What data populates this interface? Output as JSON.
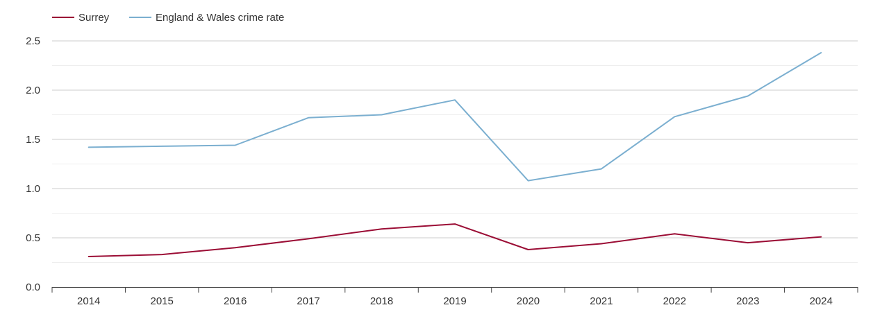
{
  "chart_data": {
    "type": "line",
    "title": "",
    "xlabel": "",
    "ylabel": "",
    "categories": [
      "2014",
      "2015",
      "2016",
      "2017",
      "2018",
      "2019",
      "2020",
      "2021",
      "2022",
      "2023",
      "2024"
    ],
    "ylim": [
      0,
      2.5
    ],
    "yticks": [
      "0.0",
      "0.5",
      "1.0",
      "1.5",
      "2.0",
      "2.5"
    ],
    "grid": true,
    "legend_position": "top-left",
    "series": [
      {
        "name": "Surrey",
        "color": "#9b0d35",
        "values": [
          0.31,
          0.33,
          0.4,
          0.49,
          0.59,
          0.64,
          0.38,
          0.44,
          0.54,
          0.45,
          0.51
        ]
      },
      {
        "name": "England & Wales crime rate",
        "color": "#7bafd0",
        "values": [
          1.42,
          1.43,
          1.44,
          1.72,
          1.75,
          1.9,
          1.08,
          1.2,
          1.73,
          1.94,
          2.38
        ]
      }
    ]
  }
}
